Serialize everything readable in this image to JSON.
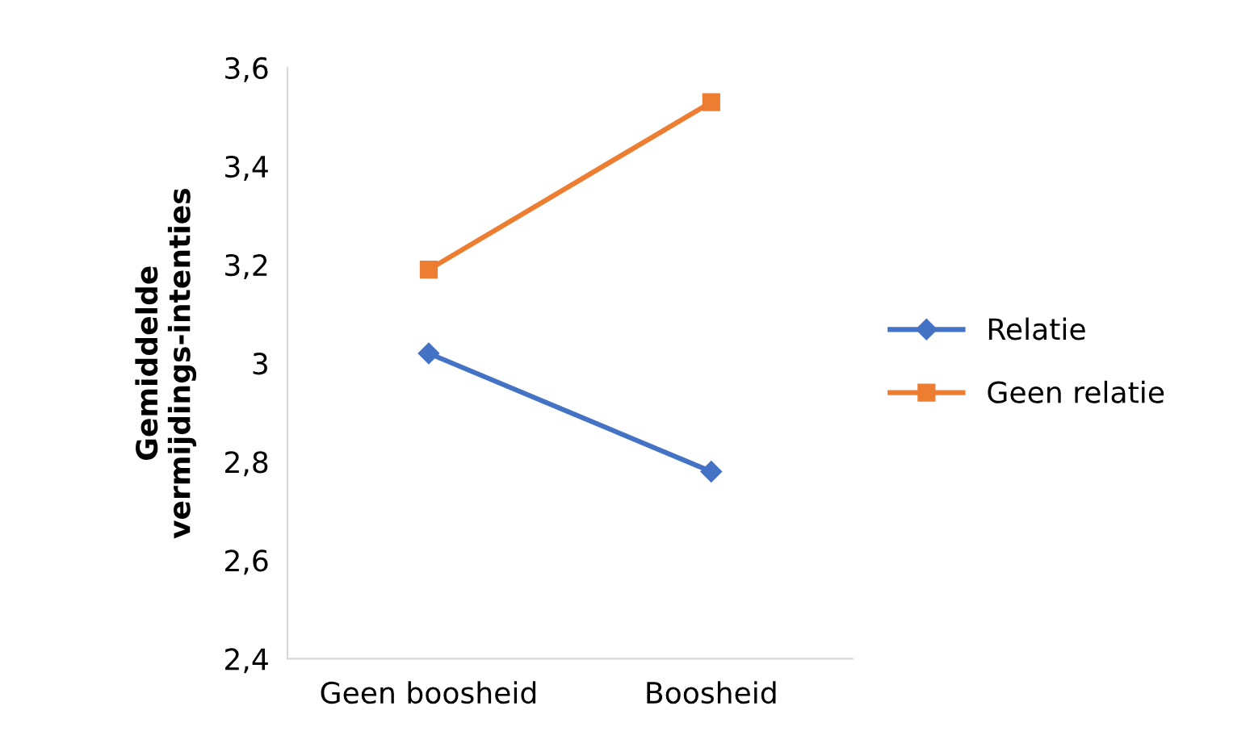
{
  "chart_data": {
    "type": "line",
    "ylabel": "Gemiddelde\nvermijdings-intenties",
    "categories": [
      "Geen boosheid",
      "Boosheid"
    ],
    "series": [
      {
        "name": "Relatie",
        "color": "#4472c4",
        "values": [
          3.02,
          2.78
        ],
        "marker": "diamond"
      },
      {
        "name": "Geen relatie",
        "color": "#ed7d31",
        "values": [
          3.19,
          3.53
        ],
        "marker": "square"
      }
    ],
    "ylim": [
      2.4,
      3.6
    ],
    "yticks": [
      {
        "value": 2.4,
        "label": "2,4"
      },
      {
        "value": 2.6,
        "label": "2,6"
      },
      {
        "value": 2.8,
        "label": "2,8"
      },
      3,
      {
        "value": 3.2,
        "label": "3,2"
      },
      {
        "value": 3.4,
        "label": "3,4"
      },
      {
        "value": 3.6,
        "label": "3,6"
      }
    ],
    "grid": false,
    "legend": "right",
    "line_style": "solid"
  }
}
